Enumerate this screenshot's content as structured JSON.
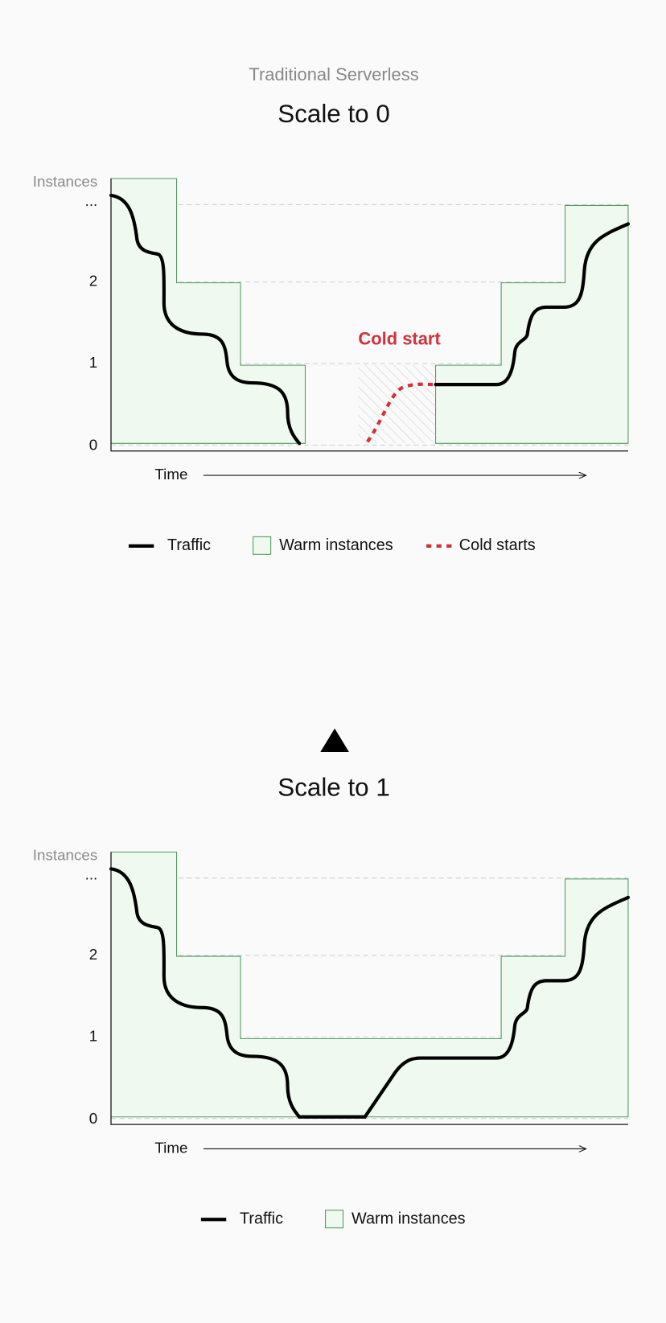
{
  "top": {
    "subtitle": "Traditional Serverless",
    "title": "Scale to 0",
    "y_axis_label": "Instances",
    "y_ticks": [
      "...",
      "2",
      "1",
      "0"
    ],
    "x_axis_label": "Time",
    "annotation": "Cold start",
    "legend": [
      "Traffic",
      "Warm instances",
      "Cold starts"
    ]
  },
  "bottom": {
    "title": "Scale to 1",
    "y_axis_label": "Instances",
    "y_ticks": [
      "...",
      "2",
      "1",
      "0"
    ],
    "x_axis_label": "Time",
    "legend": [
      "Traffic",
      "Warm instances"
    ]
  }
}
